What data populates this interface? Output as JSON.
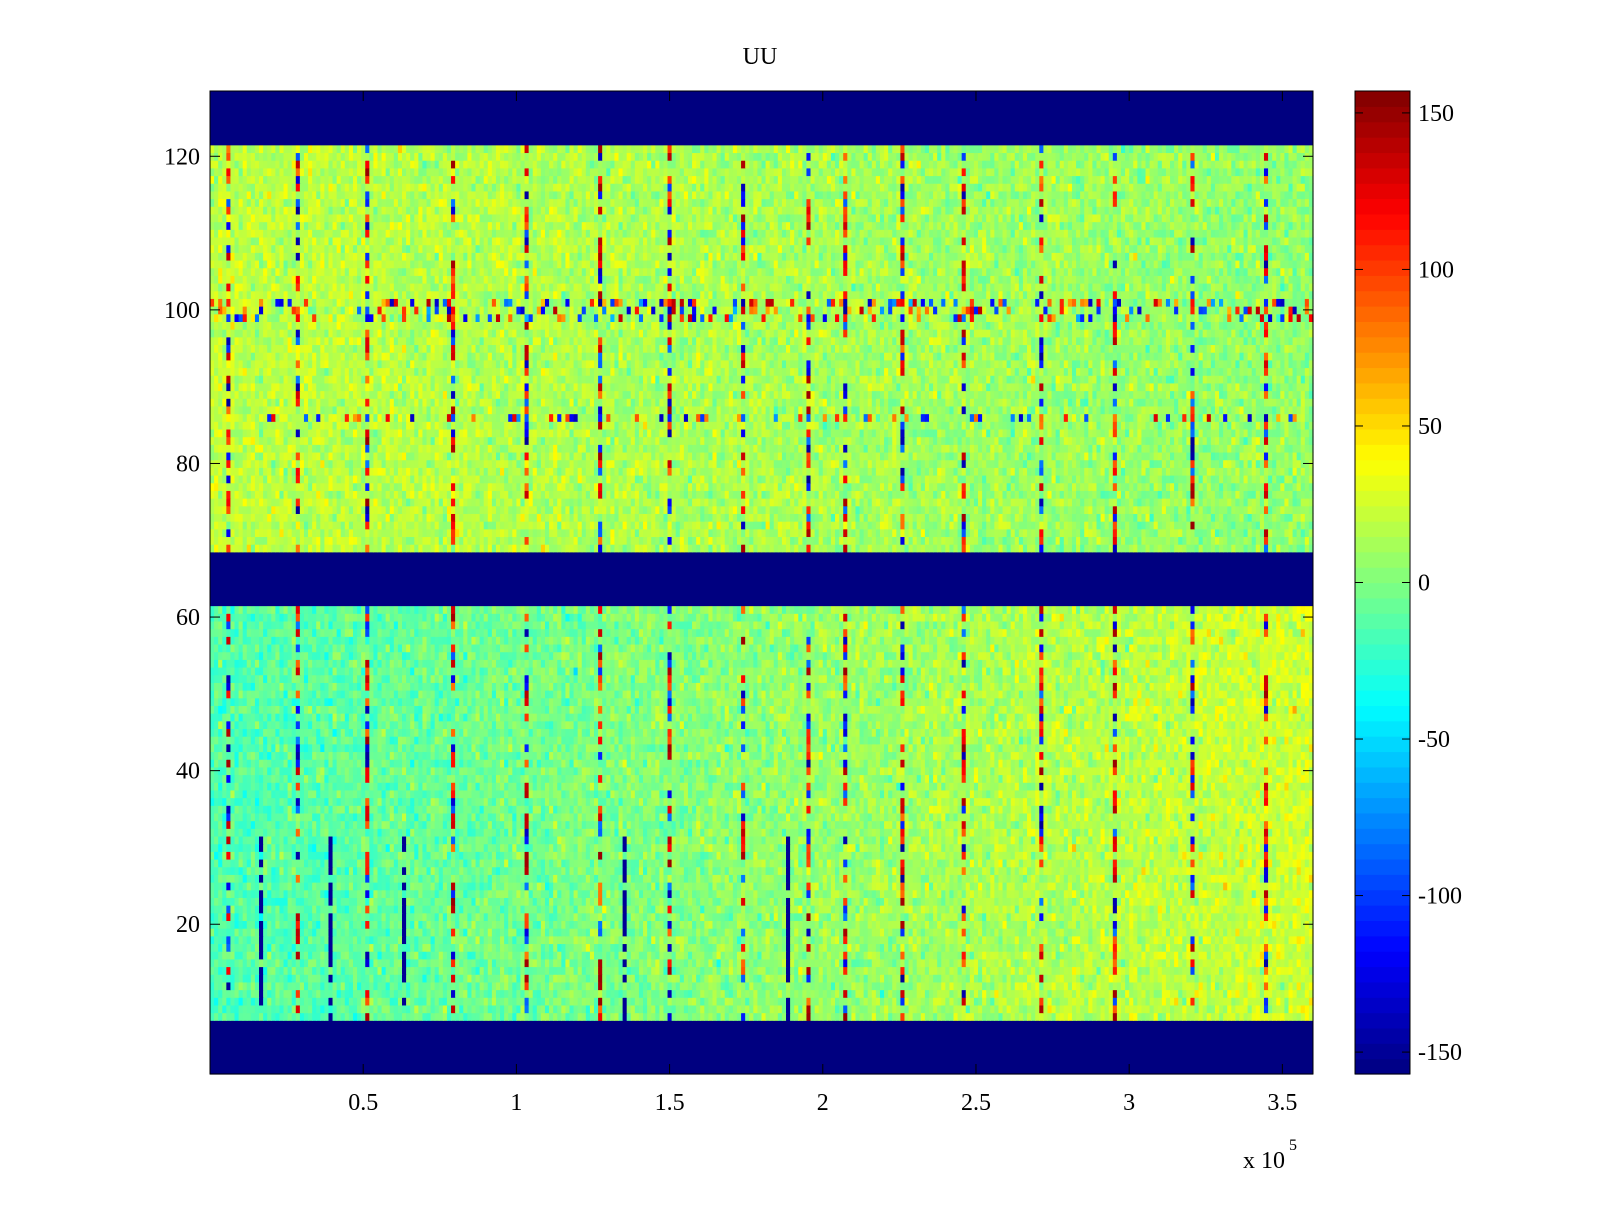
{
  "chart_data": {
    "type": "heatmap",
    "title": "UU",
    "xlabel": "",
    "ylabel": "",
    "x_multiplier_label": "x 10",
    "x_multiplier_exponent": "5",
    "xlim": [
      0.0,
      3.6
    ],
    "ylim": [
      0.5,
      128.5
    ],
    "x_ticks": [
      0.5,
      1,
      1.5,
      2,
      2.5,
      3,
      3.5
    ],
    "x_tick_labels": [
      "0.5",
      "1",
      "1.5",
      "2",
      "2.5",
      "3",
      "3.5"
    ],
    "y_ticks": [
      20,
      40,
      60,
      80,
      100,
      120
    ],
    "y_tick_labels": [
      "20",
      "40",
      "60",
      "80",
      "100",
      "120"
    ],
    "colormap": "jet",
    "color_range": [
      -157,
      157
    ],
    "colorbar_ticks": [
      150,
      100,
      50,
      0,
      -50,
      -100,
      -150
    ],
    "colorbar_tick_labels": [
      "150",
      "100",
      "50",
      "0",
      "-50",
      "-100",
      "-150"
    ],
    "rows": 128,
    "no_data_row_ranges": [
      [
        1,
        7
      ],
      [
        62,
        68
      ],
      [
        122,
        128
      ]
    ],
    "active_row_blocks": [
      {
        "rows": [
          8,
          61
        ],
        "typical_value_start": -15,
        "typical_value_end": 25
      },
      {
        "rows": [
          69,
          121
        ],
        "typical_value_start": 20,
        "typical_value_end": 5
      }
    ],
    "no_data_value": -157,
    "noise_std": 10,
    "spike_columns_x": [
      0.05,
      0.28,
      0.51,
      0.79,
      1.03,
      1.26,
      1.5,
      1.73,
      1.95,
      2.06,
      2.25,
      2.45,
      2.7,
      2.95,
      3.2,
      3.44
    ],
    "dark_line_columns_x": [
      0.16,
      0.39,
      0.62,
      1.34,
      1.88
    ],
    "high_variance_rows": [
      99,
      100,
      101,
      86
    ]
  }
}
